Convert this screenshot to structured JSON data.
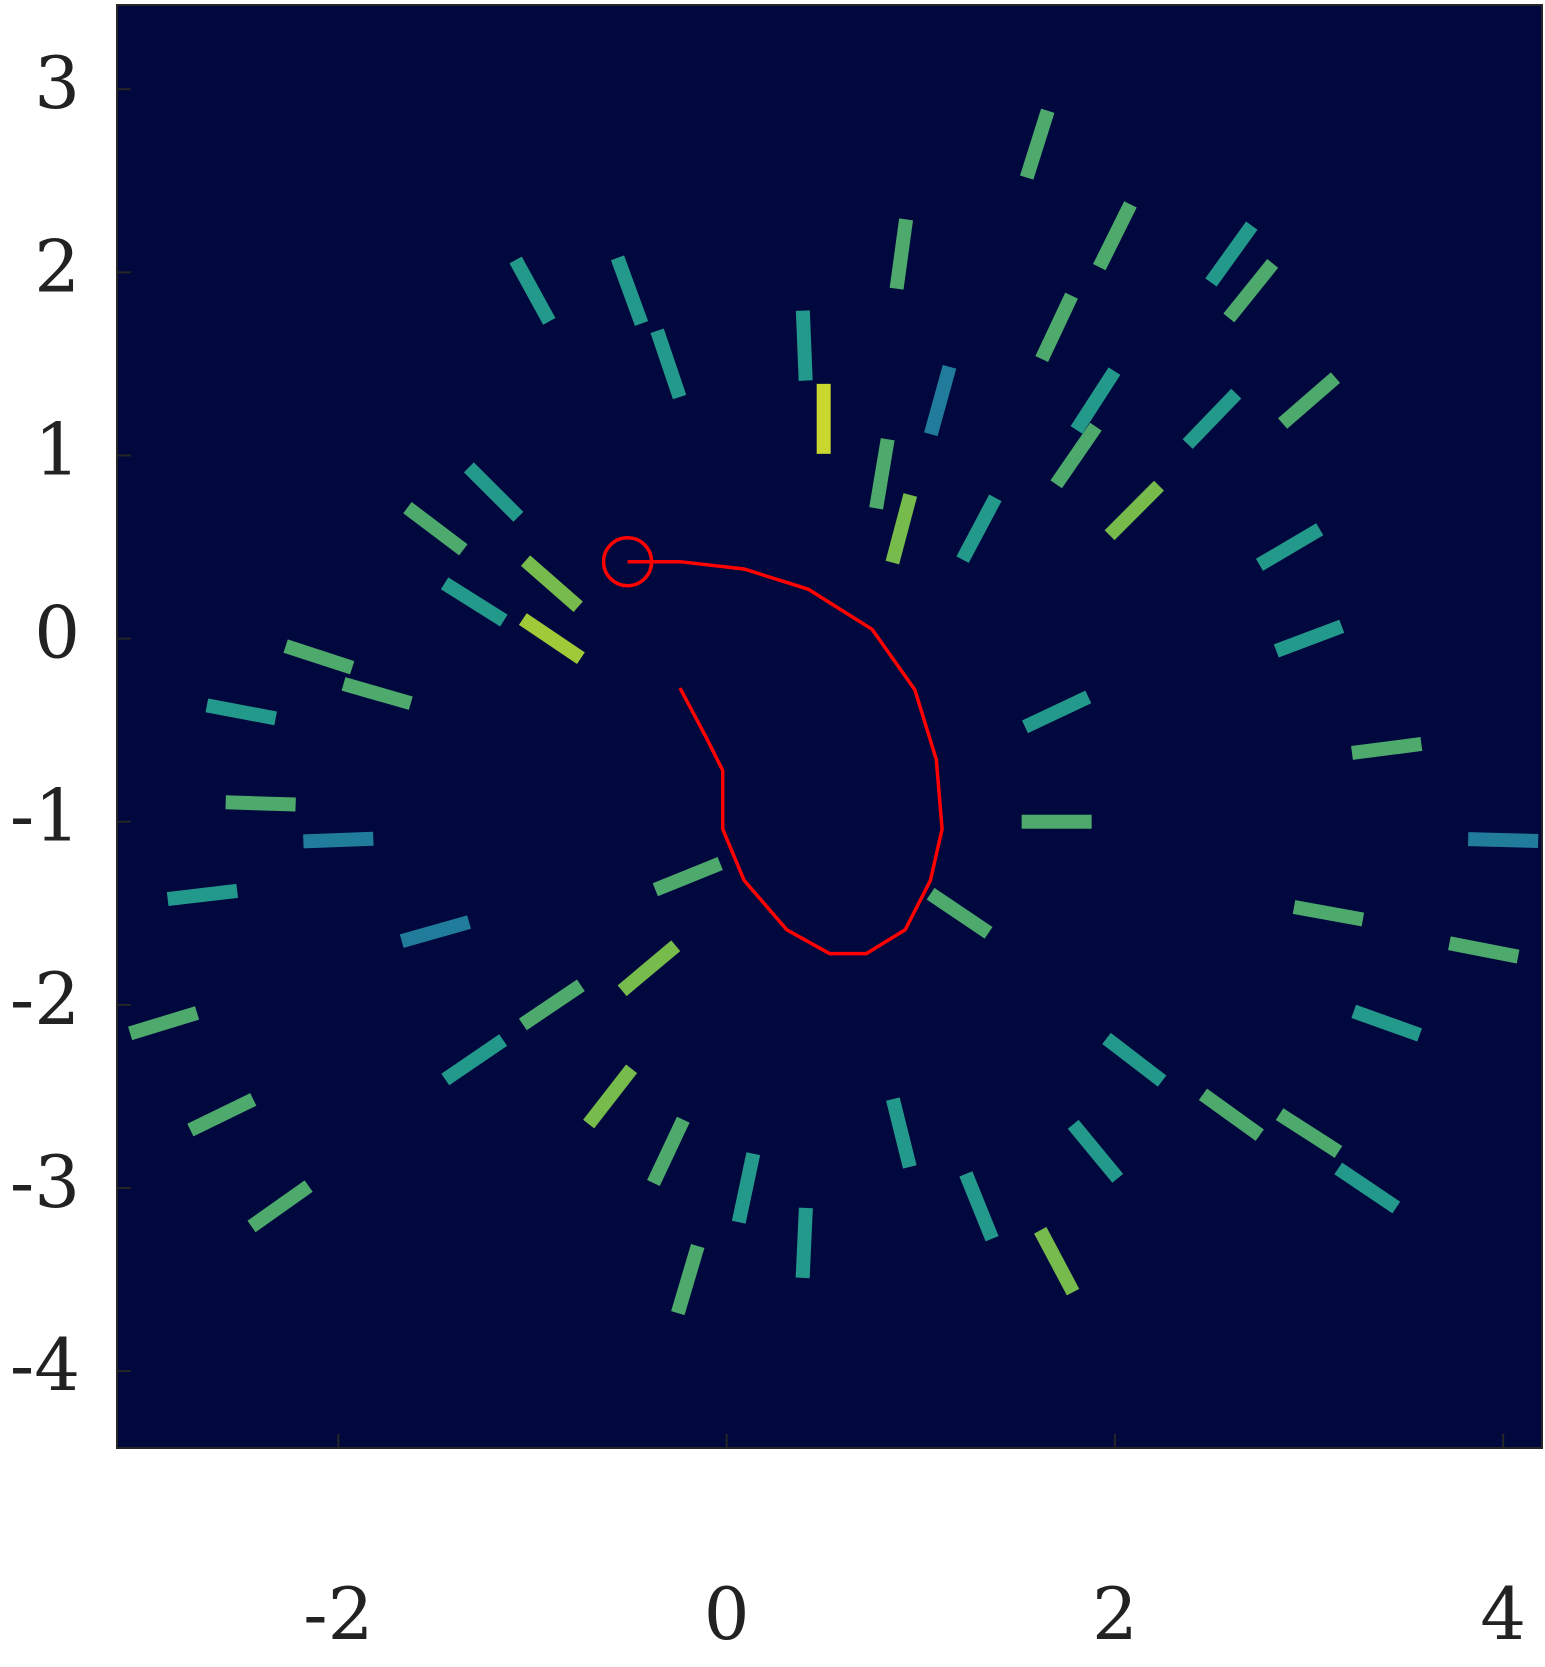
{
  "chart_data": {
    "type": "heatmap",
    "background": "#01083d",
    "colormap": [
      "#0d1c86",
      "#1f50b4",
      "#23998c",
      "#8cc43c",
      "#f2e424"
    ],
    "xlim": [
      -3.14,
      4.2
    ],
    "ylim": [
      -4.42,
      3.46
    ],
    "xticks": [
      -2,
      0,
      2,
      4
    ],
    "yticks": [
      -4,
      -3,
      -2,
      -1,
      0,
      1,
      2,
      3
    ],
    "cells": {
      "x": [
        -1.5,
        -1.2,
        -0.9,
        -0.9,
        -1.3,
        -1.8,
        -2.1,
        -2.5,
        -2.0,
        -2.4,
        -2.7,
        -2.9,
        -2.6,
        -2.3,
        -1.3,
        -1.5,
        -0.9,
        -0.6,
        -0.3,
        -0.2,
        0.1,
        0.4,
        0.9,
        1.3,
        1.7,
        1.9,
        2.1,
        2.6,
        3.0,
        3.3,
        3.4,
        3.1,
        3.4,
        3.0,
        2.9,
        2.1,
        1.8,
        2.5,
        3.0,
        1.7,
        1.9,
        2.7,
        2.6,
        2.0,
        1.6,
        0.5,
        0.9,
        0.8,
        1.3,
        1.1,
        -0.5,
        -1.0,
        -0.3,
        0.9,
        0.4,
        1.7,
        1.7,
        1.2,
        -0.2,
        -0.4,
        4.0,
        3.9
      ],
      "y": [
        0.6,
        0.8,
        0.3,
        0.0,
        0.2,
        -0.3,
        -0.1,
        -0.4,
        -1.1,
        -0.9,
        -1.4,
        -2.1,
        -2.6,
        -3.1,
        -2.3,
        -1.6,
        -2.0,
        -2.5,
        -2.8,
        -3.5,
        -3.0,
        -3.3,
        -2.7,
        -3.1,
        -3.4,
        -2.8,
        -2.3,
        -2.6,
        -2.7,
        -3.0,
        -2.1,
        -1.5,
        -0.6,
        0.0,
        0.5,
        0.7,
        1.0,
        1.2,
        1.3,
        1.7,
        1.3,
        1.9,
        2.1,
        2.2,
        2.7,
        1.2,
        0.6,
        0.9,
        0.6,
        1.3,
        1.9,
        1.9,
        1.5,
        2.1,
        1.6,
        -0.4,
        -1.0,
        -1.5,
        -1.3,
        -1.8,
        -1.1,
        -1.7
      ],
      "values": [
        0.6,
        0.5,
        0.7,
        0.8,
        0.5,
        0.6,
        0.6,
        0.5,
        0.4,
        0.6,
        0.5,
        0.6,
        0.6,
        0.6,
        0.5,
        0.4,
        0.6,
        0.7,
        0.6,
        0.6,
        0.5,
        0.5,
        0.5,
        0.5,
        0.7,
        0.5,
        0.5,
        0.6,
        0.6,
        0.5,
        0.5,
        0.6,
        0.6,
        0.5,
        0.5,
        0.7,
        0.6,
        0.5,
        0.6,
        0.6,
        0.5,
        0.6,
        0.5,
        0.6,
        0.6,
        0.9,
        0.7,
        0.6,
        0.5,
        0.4,
        0.5,
        0.5,
        0.5,
        0.6,
        0.5,
        0.5,
        0.6,
        0.6,
        0.6,
        0.7,
        0.4,
        0.6
      ]
    },
    "trajectory": {
      "color": "#ff0000",
      "x": [
        -0.51,
        -0.24,
        0.09,
        0.42,
        0.75,
        0.97,
        1.08,
        1.11,
        1.05,
        0.92,
        0.72,
        0.53,
        0.31,
        0.09,
        -0.02,
        -0.02,
        -0.1,
        -0.24
      ],
      "y": [
        0.42,
        0.42,
        0.38,
        0.27,
        0.05,
        -0.28,
        -0.66,
        -1.04,
        -1.32,
        -1.59,
        -1.72,
        -1.72,
        -1.59,
        -1.32,
        -1.04,
        -0.72,
        -0.55,
        -0.27
      ]
    },
    "start": {
      "color": "#ff0000",
      "x": -0.51,
      "y": 0.42
    }
  }
}
